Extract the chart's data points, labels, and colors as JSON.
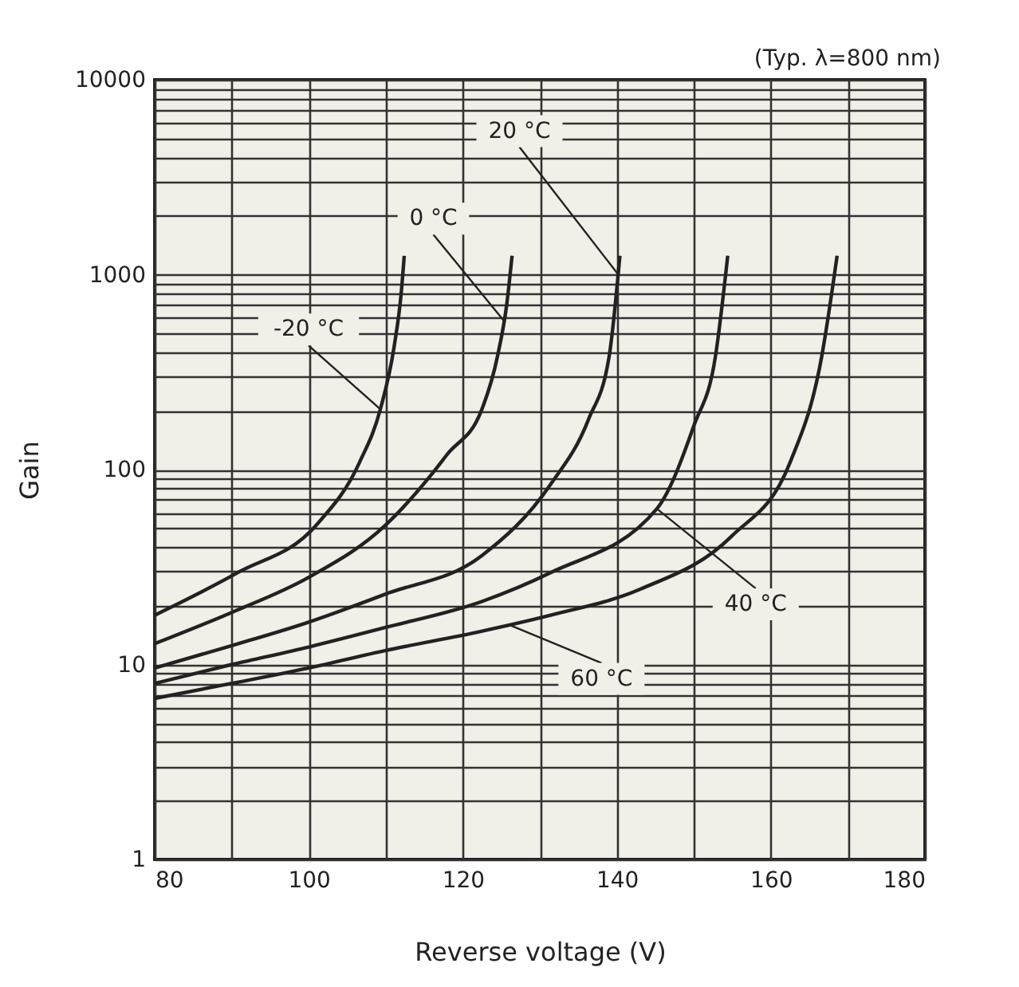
{
  "chart_data": {
    "type": "line",
    "xlabel": "Reverse voltage (V)",
    "ylabel": "Gain",
    "log": "y",
    "grid": true,
    "legend": false,
    "marker": "none",
    "line_style": "solid",
    "xlim": [
      80,
      180
    ],
    "xticks": [
      80,
      {
        "value": 90,
        "label": null
      },
      100,
      {
        "value": 110,
        "label": null
      },
      120,
      {
        "value": 130,
        "label": null
      },
      140,
      {
        "value": 150,
        "label": null
      },
      160,
      {
        "value": 170,
        "label": null
      },
      180
    ],
    "ylim": [
      1,
      10000
    ],
    "yticks": [
      1,
      {
        "value": 2,
        "label": null
      },
      {
        "value": 3,
        "label": null
      },
      {
        "value": 4,
        "label": null
      },
      {
        "value": 5,
        "label": null
      },
      {
        "value": 6,
        "label": null
      },
      {
        "value": 7,
        "label": null
      },
      {
        "value": 8,
        "label": null
      },
      {
        "value": 9,
        "label": null
      },
      10,
      {
        "value": 20,
        "label": null
      },
      {
        "value": 30,
        "label": null
      },
      {
        "value": 40,
        "label": null
      },
      {
        "value": 50,
        "label": null
      },
      {
        "value": 60,
        "label": null
      },
      {
        "value": 70,
        "label": null
      },
      {
        "value": 80,
        "label": null
      },
      {
        "value": 90,
        "label": null
      },
      100,
      {
        "value": 200,
        "label": null
      },
      {
        "value": 300,
        "label": null
      },
      {
        "value": 400,
        "label": null
      },
      {
        "value": 500,
        "label": null
      },
      {
        "value": 600,
        "label": null
      },
      {
        "value": 700,
        "label": null
      },
      {
        "value": 800,
        "label": null
      },
      {
        "value": 900,
        "label": null
      },
      1000,
      {
        "value": 2000,
        "label": null
      },
      {
        "value": 3000,
        "label": null
      },
      {
        "value": 4000,
        "label": null
      },
      {
        "value": 5000,
        "label": null
      },
      {
        "value": 6000,
        "label": null
      },
      {
        "value": 7000,
        "label": null
      },
      {
        "value": 8000,
        "label": null
      },
      {
        "value": 9000,
        "label": null
      },
      10000
    ],
    "series": [
      {
        "color": "#222222",
        "x": [
          80,
          90.7,
          101,
          106.6,
          109.3,
          111.1,
          112,
          112.4
        ],
        "values": [
          17.9,
          29.5,
          52,
          109,
          204,
          430,
          800,
          1250
        ]
      },
      {
        "color": "#222222",
        "x": [
          80,
          90,
          100,
          110,
          116,
          118,
          122.4,
          124.5,
          125.7,
          126.4
        ],
        "values": [
          12.8,
          18.5,
          28,
          52,
          95,
          120,
          200,
          380,
          700,
          1250
        ]
      },
      {
        "color": "#222222",
        "x": [
          80,
          90,
          100,
          110,
          122.4,
          131.4,
          136.3,
          139,
          140.4
        ],
        "values": [
          9.6,
          12.5,
          16.5,
          23,
          36,
          84,
          180,
          380,
          1250
        ]
      },
      {
        "color": "#222222",
        "x": [
          80,
          90,
          100,
          110,
          122.4,
          131.4,
          145.2,
          150,
          152.8,
          154.4
        ],
        "values": [
          8,
          10,
          12.3,
          15.5,
          21,
          29.6,
          63,
          168,
          380,
          1250
        ]
      },
      {
        "color": "#222222",
        "x": [
          80,
          90,
          100,
          110,
          122.4,
          131.4,
          143.1,
          154.9,
          162.5,
          166.6,
          168.6
        ],
        "values": [
          6.7,
          8,
          9.6,
          11.8,
          14.8,
          17.9,
          24.4,
          45.5,
          109,
          380,
          1250
        ]
      }
    ],
    "annotations": [
      "(Typ. λ=800 nm)",
      {
        "text": "-20 °C",
        "x": 109.3,
        "y": 204
      },
      {
        "text": "0 °C",
        "x": 125.5,
        "y": 570
      },
      {
        "text": "20 °C",
        "x": 140.2,
        "y": 1000
      },
      {
        "text": "40 °C",
        "x": 145.2,
        "y": 63
      },
      {
        "text": "60 °C",
        "x": 126,
        "y": 16
      }
    ]
  }
}
